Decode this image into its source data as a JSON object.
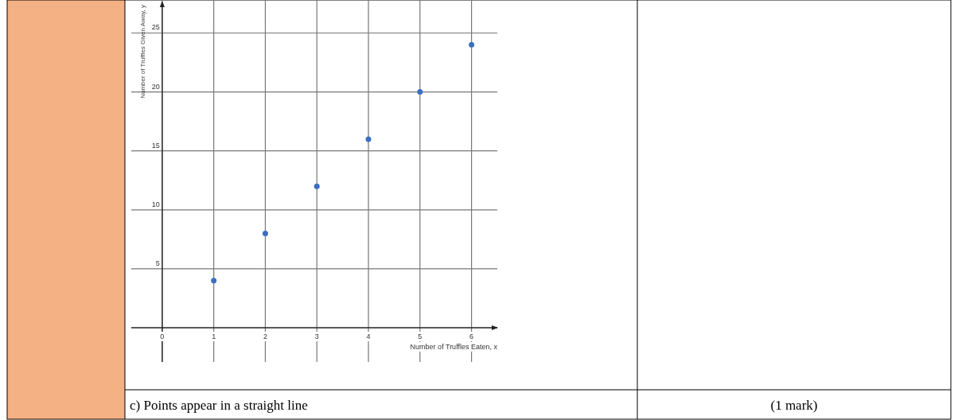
{
  "chart_data": {
    "type": "scatter",
    "xlabel": "Number of Truffles Eaten, x",
    "ylabel": "Number of Truffles Given Away, y",
    "x": [
      1,
      2,
      3,
      4,
      5,
      6
    ],
    "series": [
      {
        "color": "#3a6fc4",
        "values": [
          4,
          8,
          12,
          16,
          20,
          24
        ]
      }
    ],
    "xlim": [
      -0.6,
      6.5
    ],
    "ylim": [
      -2.9,
      27.8
    ],
    "xticks": [
      0,
      1,
      2,
      3,
      4,
      5,
      6
    ],
    "yticks": [
      5,
      10,
      15,
      20,
      25
    ],
    "grid": true,
    "marker": "circle",
    "annotations": [
      "c) Points appear in a straight line",
      "(1 mark)"
    ]
  }
}
